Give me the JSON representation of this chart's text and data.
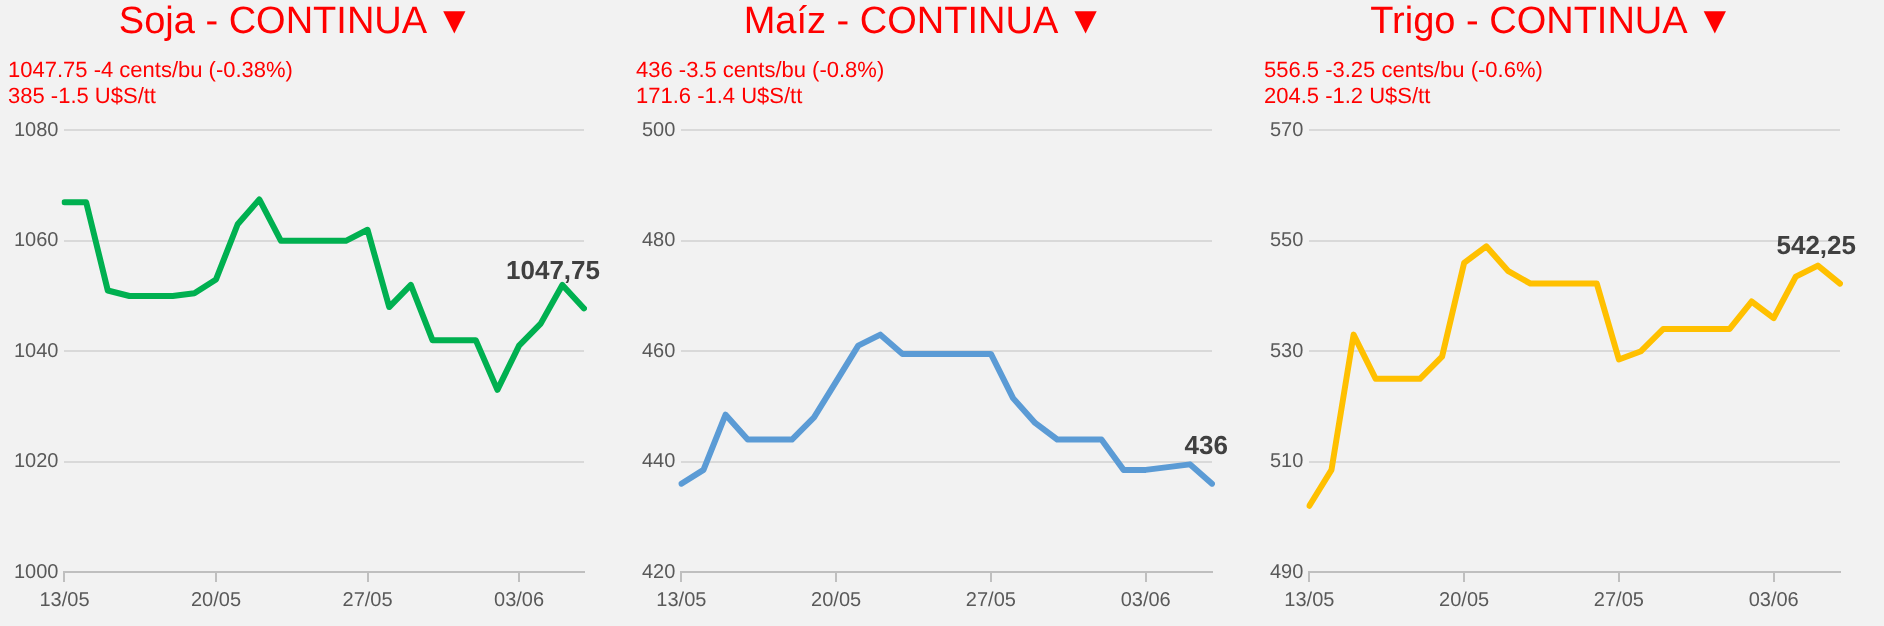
{
  "chart_data": [
    {
      "type": "line",
      "title": "Soja - CONTINUA ▼",
      "annotations": [
        "1047.75 -4 cents/bu (-0.38%)",
        "385 -1.5 U$S/tt"
      ],
      "categories": [
        "13/05",
        null,
        null,
        null,
        null,
        null,
        null,
        "20/05",
        null,
        null,
        null,
        null,
        null,
        null,
        "27/05",
        null,
        null,
        null,
        null,
        null,
        null,
        "03/06",
        null,
        null,
        null
      ],
      "series": [
        {
          "color": "#00b050",
          "values": [
            1067,
            1067,
            1051,
            1050,
            1050,
            1050,
            1050.5,
            1053,
            1063,
            1067.5,
            1060,
            1060,
            1060,
            1060,
            1062,
            1048,
            1052,
            1042,
            1042,
            1042,
            1033,
            1041,
            1045,
            1052,
            1047.75
          ],
          "value_labels": [
            null,
            null,
            null,
            null,
            null,
            null,
            null,
            null,
            null,
            null,
            null,
            null,
            null,
            null,
            null,
            null,
            null,
            null,
            null,
            null,
            null,
            null,
            null,
            null,
            "1047,75"
          ]
        }
      ],
      "ylim": [
        1000,
        1080
      ],
      "yticks": [
        1000,
        1020,
        1040,
        1060,
        1080
      ],
      "grid": "y",
      "legend": false,
      "marker": "none",
      "line_style": "solid"
    },
    {
      "type": "line",
      "title": "Maíz - CONTINUA ▼",
      "annotations": [
        "436 -3.5 cents/bu (-0.8%)",
        "171.6 -1.4 U$S/tt"
      ],
      "categories": [
        "13/05",
        null,
        null,
        null,
        null,
        null,
        null,
        "20/05",
        null,
        null,
        null,
        null,
        null,
        null,
        "27/05",
        null,
        null,
        null,
        null,
        null,
        null,
        "03/06",
        null,
        null,
        null
      ],
      "series": [
        {
          "color": "#5b9bd5",
          "values": [
            436,
            438.5,
            448.5,
            444,
            444,
            444,
            448,
            454.5,
            461,
            463,
            459.5,
            459.5,
            459.5,
            459.5,
            459.5,
            451.5,
            447,
            444,
            444,
            444,
            438.5,
            438.5,
            439,
            439.5,
            436
          ],
          "value_labels": [
            null,
            null,
            null,
            null,
            null,
            null,
            null,
            null,
            null,
            null,
            null,
            null,
            null,
            null,
            null,
            null,
            null,
            null,
            null,
            null,
            null,
            null,
            null,
            null,
            "436"
          ]
        }
      ],
      "ylim": [
        420,
        500
      ],
      "yticks": [
        420,
        440,
        460,
        480,
        500
      ],
      "grid": "y",
      "legend": false,
      "marker": "none",
      "line_style": "solid"
    },
    {
      "type": "line",
      "title": "Trigo - CONTINUA ▼",
      "annotations": [
        "556.5 -3.25 cents/bu (-0.6%)",
        "204.5 -1.2 U$S/tt"
      ],
      "categories": [
        "13/05",
        null,
        null,
        null,
        null,
        null,
        null,
        "20/05",
        null,
        null,
        null,
        null,
        null,
        null,
        "27/05",
        null,
        null,
        null,
        null,
        null,
        null,
        "03/06",
        null,
        null,
        null
      ],
      "series": [
        {
          "color": "#ffc000",
          "values": [
            502,
            508.5,
            533,
            525,
            525,
            525,
            529,
            546,
            549,
            544.5,
            542.25,
            542.25,
            542.25,
            542.25,
            528.5,
            530,
            534,
            534,
            534,
            534,
            539,
            536,
            543.5,
            545.5,
            542.25
          ],
          "value_labels": [
            null,
            null,
            null,
            null,
            null,
            null,
            null,
            null,
            null,
            null,
            null,
            null,
            null,
            null,
            null,
            null,
            null,
            null,
            null,
            null,
            null,
            null,
            null,
            null,
            "542,25"
          ]
        }
      ],
      "ylim": [
        490,
        570
      ],
      "yticks": [
        490,
        510,
        530,
        550,
        570
      ],
      "grid": "y",
      "legend": false,
      "marker": "none",
      "line_style": "solid"
    }
  ]
}
